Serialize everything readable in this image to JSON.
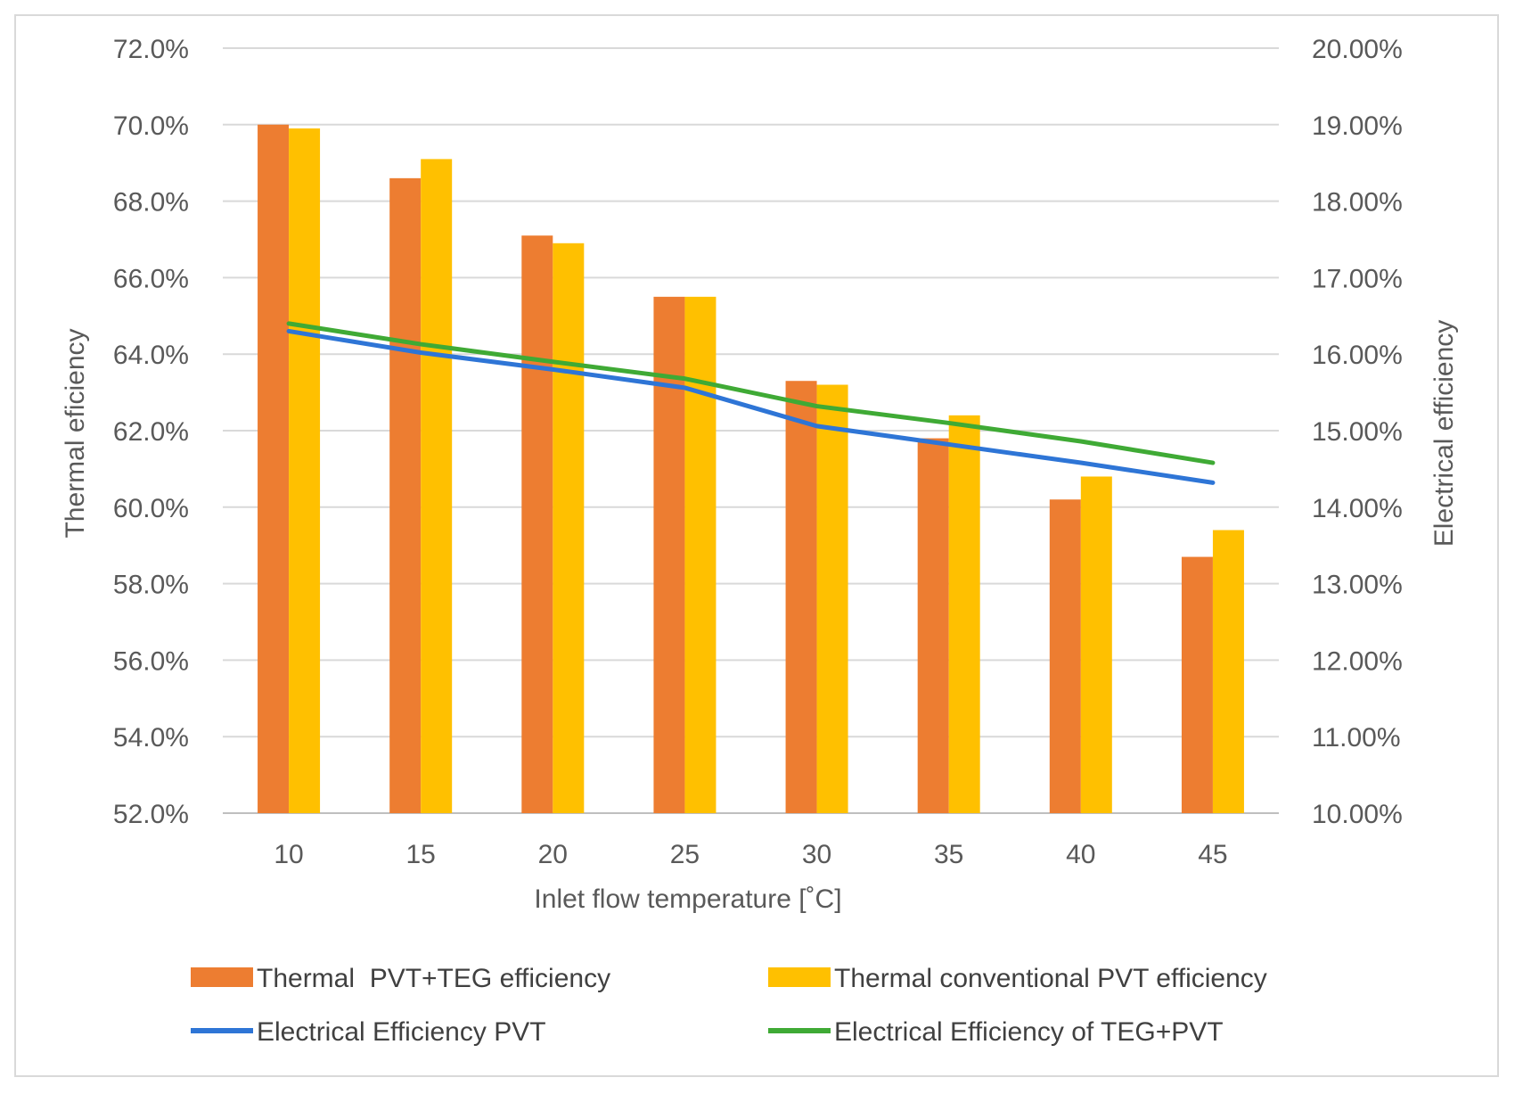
{
  "chart_data": {
    "type": "bar",
    "categories": [
      "10",
      "15",
      "20",
      "25",
      "30",
      "35",
      "40",
      "45"
    ],
    "xlabel": "Inlet flow temperature [˚C]",
    "ylabel": "Thermal eficiency",
    "y2label": "Electrical efficiency",
    "ylim": [
      52.0,
      72.0
    ],
    "y2lim": [
      10.0,
      20.0
    ],
    "yticks": [
      "52.0%",
      "54.0%",
      "56.0%",
      "58.0%",
      "60.0%",
      "62.0%",
      "64.0%",
      "66.0%",
      "68.0%",
      "70.0%",
      "72.0%"
    ],
    "y2ticks": [
      "10.00%",
      "11.00%",
      "12.00%",
      "13.00%",
      "14.00%",
      "15.00%",
      "16.00%",
      "17.00%",
      "18.00%",
      "19.00%",
      "20.00%"
    ],
    "grid": true,
    "legend_position": "bottom",
    "series": [
      {
        "name": "Thermal  PVT+TEG efficiency",
        "kind": "bar",
        "axis": "left",
        "color": "#ED7D31",
        "values": [
          70.0,
          68.6,
          67.1,
          65.5,
          63.3,
          61.8,
          60.2,
          58.7
        ]
      },
      {
        "name": "Thermal conventional PVT efficiency",
        "kind": "bar",
        "axis": "left",
        "color": "#FFC000",
        "values": [
          69.9,
          69.1,
          66.9,
          65.5,
          63.2,
          62.4,
          60.8,
          59.4
        ]
      },
      {
        "name": "Electrical Efficiency PVT",
        "kind": "line",
        "axis": "right",
        "color": "#2E75D6",
        "values": [
          16.3,
          16.02,
          15.8,
          15.56,
          15.06,
          14.82,
          14.58,
          14.32
        ]
      },
      {
        "name": "Electrical Efficiency of TEG+PVT",
        "kind": "line",
        "axis": "right",
        "color": "#3FAA35",
        "values": [
          16.4,
          16.13,
          15.9,
          15.68,
          15.32,
          15.1,
          14.86,
          14.58
        ]
      }
    ]
  }
}
